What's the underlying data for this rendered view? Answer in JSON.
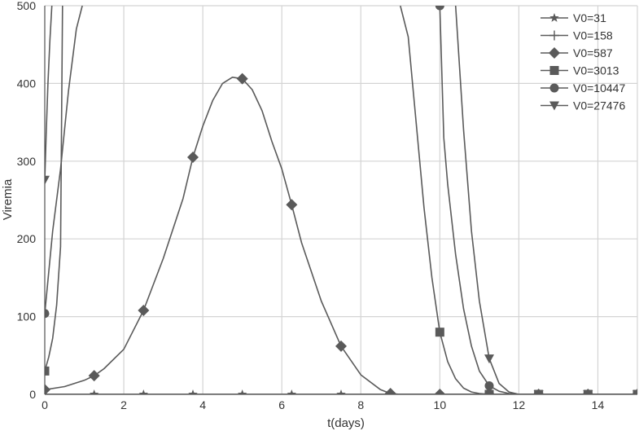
{
  "chart_data": {
    "type": "line",
    "title": "",
    "xlabel": "t(days)",
    "ylabel": "Viremia",
    "xlim": [
      0,
      15
    ],
    "ylim": [
      0,
      500
    ],
    "xticks": [
      "0",
      "2",
      "4",
      "6",
      "8",
      "10",
      "12",
      "14"
    ],
    "yticks": [
      "0",
      "100",
      "200",
      "300",
      "400",
      "500"
    ],
    "grid": true,
    "legend_position": "top-right",
    "line_color": "#5a5a5a",
    "series": [
      {
        "name": "V0=31",
        "marker": "star",
        "x": [
          0,
          1.25,
          2.5,
          3.75,
          5.0,
          6.25,
          7.5,
          8.75,
          10.0,
          11.25,
          12.5,
          13.75,
          15.0
        ],
        "y": [
          0,
          0,
          0,
          0,
          0,
          0,
          0,
          0,
          0,
          0,
          0,
          0,
          0
        ],
        "markers_at": [
          1.25,
          2.5,
          3.75,
          5.0,
          6.25,
          7.5
        ]
      },
      {
        "name": "V0=158",
        "marker": "plus",
        "x": [
          0,
          3.75,
          7.5,
          11.25,
          15.0
        ],
        "y": [
          0,
          0,
          0,
          0,
          0
        ],
        "markers_at": []
      },
      {
        "name": "V0=587",
        "marker": "diamond",
        "x": [
          0,
          0.5,
          1.0,
          1.25,
          1.5,
          2.0,
          2.5,
          3.0,
          3.5,
          3.75,
          4.0,
          4.25,
          4.5,
          4.75,
          5.0,
          5.25,
          5.5,
          5.75,
          6.0,
          6.25,
          6.5,
          7.0,
          7.5,
          8.0,
          8.5,
          8.75,
          9.0,
          10.0,
          11.25,
          12.5,
          13.75,
          15.0
        ],
        "y": [
          6,
          10,
          18,
          24,
          33,
          58,
          108,
          175,
          252,
          305,
          345,
          378,
          400,
          408,
          406,
          392,
          365,
          325,
          290,
          244,
          195,
          120,
          62,
          25,
          6,
          1,
          0,
          0,
          0,
          0,
          0,
          0
        ],
        "markers_at": [
          0,
          1.25,
          2.5,
          3.75,
          5.0,
          6.25,
          7.5,
          8.75,
          10.0,
          11.25,
          12.5,
          13.75,
          15.0
        ]
      },
      {
        "name": "V0=3013",
        "marker": "square",
        "x": [
          0,
          0.1,
          0.2,
          0.3,
          0.4,
          0.45,
          9.0,
          9.2,
          9.4,
          9.6,
          9.8,
          10.0,
          10.2,
          10.4,
          10.6,
          10.8,
          11.0,
          11.25,
          12.5,
          13.75,
          15.0
        ],
        "y": [
          30,
          48,
          72,
          115,
          190,
          500,
          500,
          460,
          350,
          240,
          150,
          80,
          42,
          20,
          8,
          3,
          1,
          0,
          0,
          0,
          0
        ],
        "markers_at": [
          0,
          10.0,
          11.25,
          12.5,
          13.75,
          15.0
        ]
      },
      {
        "name": "V0=10447",
        "marker": "circle",
        "x": [
          0,
          0.2,
          0.4,
          0.6,
          0.8,
          0.95,
          10.0,
          10.1,
          10.2,
          10.4,
          10.6,
          10.8,
          11.0,
          11.25,
          11.5,
          11.75,
          12.0,
          12.5,
          13.75,
          15.0
        ],
        "y": [
          104,
          210,
          290,
          390,
          470,
          500,
          500,
          330,
          270,
          180,
          110,
          62,
          30,
          11,
          4,
          1,
          0,
          0,
          0,
          0
        ],
        "markers_at": [
          0,
          10.0,
          11.25,
          12.5,
          13.75,
          15.0
        ]
      },
      {
        "name": "V0=27476",
        "marker": "triangle-down",
        "x": [
          0,
          0.04,
          0.08,
          0.13,
          0.18,
          0.22,
          10.4,
          10.6,
          10.8,
          11.0,
          11.25,
          11.5,
          11.75,
          12.0,
          12.5,
          13.75,
          15.0
        ],
        "y": [
          276,
          340,
          400,
          455,
          500,
          500,
          500,
          340,
          210,
          120,
          46,
          14,
          3,
          0,
          0,
          0,
          0
        ],
        "markers_at": [
          0,
          11.25,
          12.5,
          13.75,
          15.0
        ]
      }
    ]
  }
}
